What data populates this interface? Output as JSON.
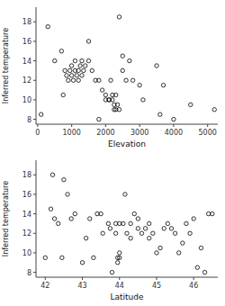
{
  "chart_data": [
    {
      "type": "scatter",
      "xlabel": "Elevation",
      "ylabel": "Inferred temperature",
      "x": [
        100,
        300,
        500,
        700,
        750,
        800,
        850,
        900,
        950,
        1000,
        1000,
        1050,
        1100,
        1100,
        1150,
        1200,
        1200,
        1250,
        1300,
        1300,
        1350,
        1400,
        1500,
        1500,
        1600,
        1700,
        1800,
        1800,
        1900,
        2000,
        2000,
        2100,
        2100,
        2150,
        2200,
        2200,
        2250,
        2250,
        2300,
        2300,
        2350,
        2400,
        2400,
        2500,
        2500,
        2600,
        2700,
        2800,
        3000,
        3100,
        3500,
        3600,
        3700,
        4000,
        4500,
        5200
      ],
      "values": [
        8.5,
        17.5,
        14.0,
        15.0,
        10.5,
        13.0,
        12.5,
        12.0,
        13.0,
        12.5,
        13.5,
        12.0,
        13.0,
        14.0,
        12.5,
        13.0,
        12.0,
        13.5,
        12.5,
        14.0,
        13.0,
        13.5,
        14.0,
        16.0,
        13.0,
        12.0,
        12.0,
        8.0,
        11.0,
        10.0,
        10.5,
        10.0,
        10.0,
        12.0,
        10.0,
        10.5,
        9.5,
        9.0,
        9.0,
        10.5,
        9.5,
        9.0,
        18.5,
        13.0,
        14.5,
        12.0,
        14.0,
        12.0,
        11.5,
        10.0,
        13.5,
        8.5,
        11.5,
        8.0,
        9.5,
        9.0
      ],
      "xlim": [
        -50,
        5300
      ],
      "ylim": [
        7.5,
        19.5
      ],
      "xticks": [
        0,
        1000,
        2000,
        3000,
        4000,
        5000
      ],
      "yticks": [
        8,
        10,
        12,
        14,
        16,
        18
      ],
      "color": "black",
      "marker": "circle"
    },
    {
      "type": "scatter",
      "xlabel": "Latitude",
      "ylabel": "Inferred temperature",
      "x": [
        42.0,
        42.15,
        42.2,
        42.25,
        42.35,
        42.45,
        42.5,
        42.6,
        42.7,
        42.8,
        43.0,
        43.1,
        43.2,
        43.3,
        43.4,
        43.5,
        43.55,
        43.7,
        43.75,
        43.8,
        43.9,
        43.9,
        43.95,
        43.95,
        44.0,
        44.0,
        44.0,
        44.1,
        44.15,
        44.2,
        44.3,
        44.3,
        44.4,
        44.5,
        44.5,
        44.6,
        44.7,
        44.8,
        44.8,
        44.9,
        45.0,
        45.1,
        45.2,
        45.3,
        45.4,
        45.5,
        45.6,
        45.7,
        45.8,
        45.9,
        46.0,
        46.1,
        46.2,
        46.3,
        46.4,
        46.5
      ],
      "values": [
        9.5,
        14.5,
        18.0,
        13.5,
        13.0,
        9.5,
        17.5,
        16.0,
        13.5,
        14.0,
        9.0,
        11.5,
        13.5,
        9.5,
        14.0,
        14.0,
        12.0,
        13.0,
        12.5,
        8.0,
        12.0,
        13.0,
        9.5,
        9.0,
        9.5,
        10.0,
        13.0,
        13.0,
        16.0,
        12.0,
        11.5,
        13.0,
        14.0,
        12.5,
        13.5,
        12.0,
        12.5,
        11.5,
        13.0,
        12.0,
        10.0,
        10.5,
        12.5,
        13.0,
        12.5,
        12.0,
        10.0,
        11.0,
        13.0,
        12.0,
        13.5,
        8.5,
        10.5,
        8.0,
        14.0,
        14.0
      ],
      "xlim": [
        41.75,
        46.65
      ],
      "ylim": [
        7.5,
        19.5
      ],
      "xticks": [
        42,
        43,
        44,
        45,
        46
      ],
      "yticks": [
        8,
        10,
        12,
        14,
        16,
        18
      ],
      "color": "black",
      "marker": "circle"
    }
  ]
}
